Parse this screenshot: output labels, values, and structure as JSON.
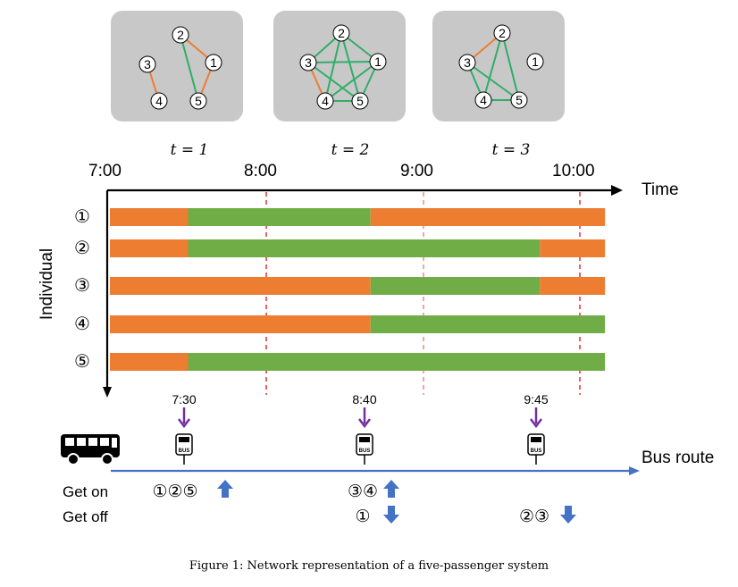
{
  "networks": [
    {
      "label": "t = 1",
      "nodes": [
        {
          "id": "1",
          "label": "①"
        },
        {
          "id": "2",
          "label": "②"
        },
        {
          "id": "3",
          "label": "③"
        },
        {
          "id": "4",
          "label": "④"
        },
        {
          "id": "5",
          "label": "⑤"
        }
      ],
      "edges": [
        {
          "from": "2",
          "to": "5",
          "state": "green"
        },
        {
          "from": "2",
          "to": "1",
          "state": "orange"
        },
        {
          "from": "1",
          "to": "5",
          "state": "orange"
        },
        {
          "from": "3",
          "to": "4",
          "state": "orange"
        }
      ]
    },
    {
      "label": "t = 2",
      "nodes": [
        {
          "id": "1",
          "label": "①"
        },
        {
          "id": "2",
          "label": "②"
        },
        {
          "id": "3",
          "label": "③"
        },
        {
          "id": "4",
          "label": "④"
        },
        {
          "id": "5",
          "label": "⑤"
        }
      ],
      "edges": [
        {
          "from": "2",
          "to": "1",
          "state": "green"
        },
        {
          "from": "2",
          "to": "3",
          "state": "green"
        },
        {
          "from": "2",
          "to": "4",
          "state": "green"
        },
        {
          "from": "2",
          "to": "5",
          "state": "green"
        },
        {
          "from": "1",
          "to": "3",
          "state": "green"
        },
        {
          "from": "1",
          "to": "4",
          "state": "green"
        },
        {
          "from": "1",
          "to": "5",
          "state": "green"
        },
        {
          "from": "3",
          "to": "5",
          "state": "green"
        },
        {
          "from": "4",
          "to": "5",
          "state": "green"
        },
        {
          "from": "3",
          "to": "4",
          "state": "orange"
        }
      ]
    },
    {
      "label": "t = 3",
      "nodes": [
        {
          "id": "1",
          "label": "①"
        },
        {
          "id": "2",
          "label": "②"
        },
        {
          "id": "3",
          "label": "③"
        },
        {
          "id": "4",
          "label": "④"
        },
        {
          "id": "5",
          "label": "⑤"
        }
      ],
      "edges": [
        {
          "from": "2",
          "to": "3",
          "state": "orange"
        },
        {
          "from": "2",
          "to": "4",
          "state": "green"
        },
        {
          "from": "2",
          "to": "5",
          "state": "green"
        },
        {
          "from": "3",
          "to": "4",
          "state": "green"
        },
        {
          "from": "3",
          "to": "5",
          "state": "green"
        },
        {
          "from": "4",
          "to": "5",
          "state": "green"
        }
      ]
    }
  ],
  "timeline": {
    "hours": [
      "7:00",
      "8:00",
      "9:00",
      "10:00"
    ],
    "axis_x_label": "Time",
    "axis_y_label": "Individual",
    "individuals": [
      {
        "label": "①",
        "segments": [
          [
            "7:00",
            "7:30",
            "orange"
          ],
          [
            "7:30",
            "8:40",
            "green"
          ],
          [
            "8:40",
            "10:10",
            "orange"
          ]
        ]
      },
      {
        "label": "②",
        "segments": [
          [
            "7:00",
            "7:30",
            "orange"
          ],
          [
            "7:30",
            "9:45",
            "green"
          ],
          [
            "9:45",
            "10:10",
            "orange"
          ]
        ]
      },
      {
        "label": "③",
        "segments": [
          [
            "7:00",
            "8:40",
            "orange"
          ],
          [
            "8:40",
            "9:45",
            "green"
          ],
          [
            "9:45",
            "10:10",
            "orange"
          ]
        ]
      },
      {
        "label": "④",
        "segments": [
          [
            "7:00",
            "8:40",
            "orange"
          ],
          [
            "8:40",
            "10:10",
            "green"
          ]
        ]
      },
      {
        "label": "⑤",
        "segments": [
          [
            "7:00",
            "7:30",
            "orange"
          ],
          [
            "7:30",
            "10:10",
            "green"
          ]
        ]
      }
    ]
  },
  "stops": [
    {
      "time": "7:30",
      "get_on": "①②⑤",
      "get_off": ""
    },
    {
      "time": "8:40",
      "get_on": "③④",
      "get_off": "①"
    },
    {
      "time": "9:45",
      "get_on": "",
      "get_off": "②③"
    }
  ],
  "labels": {
    "get_on": "Get on",
    "get_off": "Get off",
    "bus_route": "Bus route",
    "caption": "Figure 1: Network representation of a five-passenger system",
    "bus_sign": "BUS"
  },
  "colors": {
    "orange": "#ED7D31",
    "green": "#70AD47",
    "panel": "#C8C8C8",
    "red_dash": "#E02020",
    "blue": "#4472C4",
    "purple": "#7030A0"
  },
  "icons": [
    "bus-icon",
    "bus-stop-icon",
    "up-arrow-icon",
    "down-arrow-icon",
    "down-arrow-purple-icon"
  ]
}
